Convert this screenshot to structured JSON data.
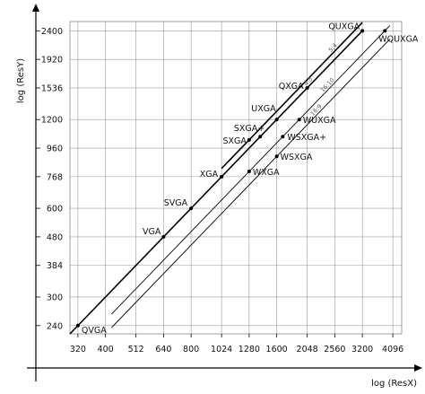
{
  "chart_data": {
    "type": "scatter",
    "title": "",
    "xlabel": "log (ResX)",
    "ylabel": "log (ResY)",
    "xscale": "log",
    "yscale": "log",
    "xlim": [
      300,
      4400
    ],
    "ylim": [
      225,
      2580
    ],
    "grid": true,
    "x_ticks": [
      320,
      400,
      512,
      640,
      800,
      1024,
      1280,
      1600,
      2048,
      2560,
      3200,
      4096
    ],
    "y_ticks": [
      240,
      300,
      384,
      480,
      600,
      768,
      960,
      1200,
      1536,
      1920,
      2400
    ],
    "points": [
      {
        "label": "QVGA",
        "x": 320,
        "y": 240
      },
      {
        "label": "VGA",
        "x": 640,
        "y": 480
      },
      {
        "label": "SVGA",
        "x": 800,
        "y": 600
      },
      {
        "label": "XGA",
        "x": 1024,
        "y": 768
      },
      {
        "label": "WXGA",
        "x": 1280,
        "y": 800
      },
      {
        "label": "SXGA",
        "x": 1280,
        "y": 1024
      },
      {
        "label": "SXGA+",
        "x": 1400,
        "y": 1050
      },
      {
        "label": "UXGA",
        "x": 1600,
        "y": 1200
      },
      {
        "label": "WSXGA",
        "x": 1600,
        "y": 900
      },
      {
        "label": "WSXGA+",
        "x": 1680,
        "y": 1050
      },
      {
        "label": "QXGA",
        "x": 2048,
        "y": 1536
      },
      {
        "label": "WUXGA",
        "x": 1920,
        "y": 1200
      },
      {
        "label": "QUXGA",
        "x": 3200,
        "y": 2400
      },
      {
        "label": "WQUXGA",
        "x": 3840,
        "y": 2400
      }
    ],
    "series": [
      {
        "name": "5:4",
        "ratio": 0.8,
        "from_x": 1024,
        "to_x": 3200
      },
      {
        "name": "4:3",
        "ratio": 0.75,
        "from_x": 300,
        "to_x": 3200
      },
      {
        "name": "16:10",
        "ratio": 0.625,
        "from_x": 420,
        "to_x": 4000
      },
      {
        "name": "16:9",
        "ratio": 0.5625,
        "from_x": 420,
        "to_x": 4000
      }
    ]
  }
}
